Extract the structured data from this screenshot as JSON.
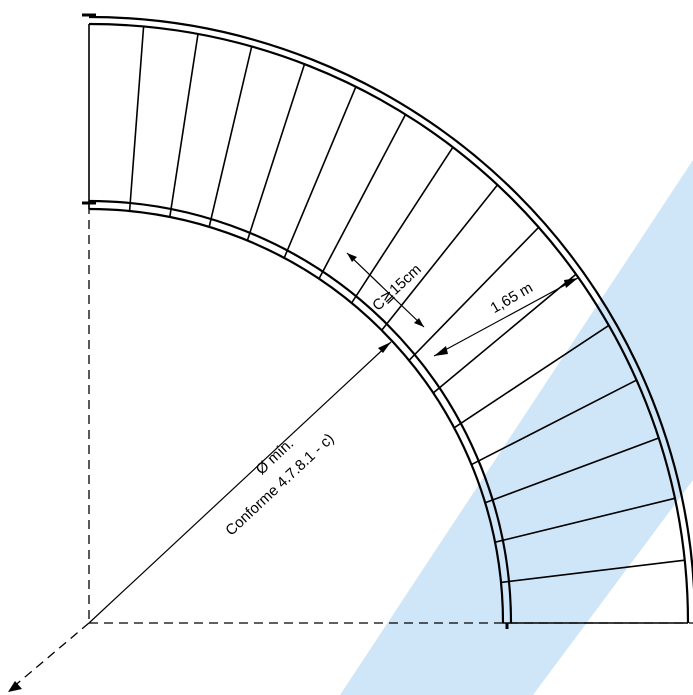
{
  "labels": {
    "clearance": "C≧15cm",
    "width": "1,65 m",
    "diameter_line1": "Ø mín.",
    "diameter_line2": "Conforme 4.7.8.1 - c)"
  },
  "colors": {
    "ink": "#000000",
    "watermark": "#cfe6f8",
    "background": "#ffffff"
  }
}
